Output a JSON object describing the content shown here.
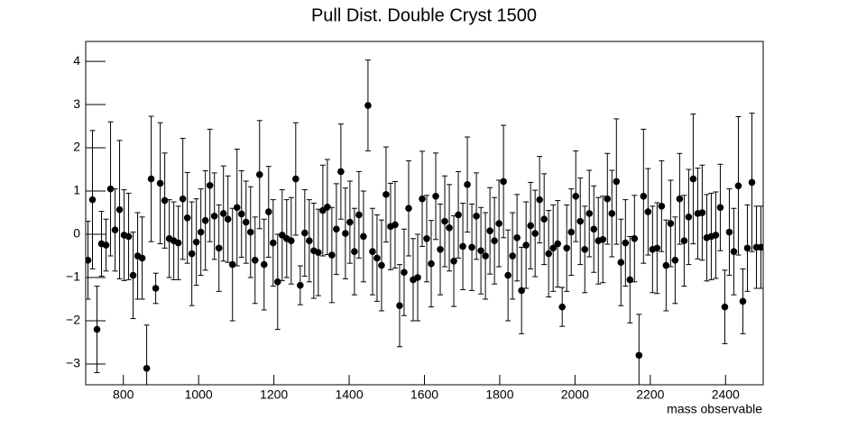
{
  "chart_data": {
    "type": "errorbar",
    "title": "Pull Dist. Double Cryst 1500",
    "x_label": "mass observable",
    "x": [
      706,
      718,
      730,
      742,
      754,
      766,
      778,
      790,
      802,
      814,
      826,
      838,
      850,
      862,
      874,
      886,
      898,
      910,
      922,
      934,
      946,
      958,
      970,
      982,
      994,
      1006,
      1018,
      1030,
      1042,
      1054,
      1066,
      1078,
      1090,
      1102,
      1114,
      1126,
      1138,
      1150,
      1162,
      1174,
      1186,
      1198,
      1210,
      1222,
      1234,
      1246,
      1258,
      1270,
      1282,
      1294,
      1306,
      1318,
      1330,
      1342,
      1354,
      1366,
      1378,
      1390,
      1402,
      1414,
      1426,
      1438,
      1450,
      1462,
      1474,
      1486,
      1498,
      1510,
      1522,
      1534,
      1546,
      1558,
      1570,
      1582,
      1594,
      1606,
      1618,
      1630,
      1642,
      1654,
      1666,
      1678,
      1690,
      1702,
      1714,
      1726,
      1738,
      1750,
      1762,
      1774,
      1786,
      1798,
      1810,
      1822,
      1834,
      1846,
      1858,
      1870,
      1882,
      1894,
      1906,
      1918,
      1930,
      1942,
      1954,
      1966,
      1978,
      1990,
      2002,
      2014,
      2026,
      2038,
      2050,
      2062,
      2074,
      2086,
      2098,
      2110,
      2122,
      2134,
      2146,
      2158,
      2170,
      2182,
      2194,
      2206,
      2218,
      2230,
      2242,
      2254,
      2266,
      2278,
      2290,
      2302,
      2314,
      2326,
      2338,
      2350,
      2362,
      2374,
      2386,
      2398,
      2410,
      2422,
      2434,
      2446,
      2458,
      2470,
      2482,
      2494
    ],
    "values": [
      -0.6,
      0.8,
      -2.2,
      -0.22,
      -0.25,
      1.05,
      0.1,
      0.57,
      -0.02,
      -0.05,
      -0.95,
      -0.5,
      -0.55,
      -3.1,
      1.28,
      -1.25,
      1.18,
      0.78,
      -0.1,
      -0.15,
      -0.2,
      0.82,
      0.38,
      -0.45,
      -0.18,
      0.05,
      0.32,
      1.13,
      0.42,
      -0.32,
      0.48,
      0.35,
      -0.7,
      0.62,
      0.47,
      0.28,
      0.05,
      -0.6,
      1.38,
      -0.7,
      0.52,
      -0.2,
      -1.1,
      -0.02,
      -0.1,
      -0.15,
      1.28,
      -1.18,
      0.03,
      -0.15,
      -0.38,
      -0.42,
      0.55,
      0.63,
      -0.48,
      0.12,
      1.45,
      0.02,
      0.28,
      -0.4,
      0.45,
      -0.05,
      2.98,
      -0.4,
      -0.55,
      -0.72,
      0.92,
      0.18,
      0.22,
      -1.65,
      -0.88,
      0.6,
      -1.05,
      -1.0,
      0.82,
      -0.1,
      -0.68,
      0.88,
      -0.35,
      0.3,
      0.15,
      -0.62,
      0.45,
      -0.28,
      1.15,
      -0.3,
      0.42,
      -0.38,
      -0.5,
      0.08,
      -0.15,
      0.25,
      1.22,
      -0.95,
      -0.5,
      -0.08,
      -1.3,
      -0.25,
      0.2,
      0.02,
      0.8,
      0.35,
      -0.45,
      -0.32,
      -0.22,
      -1.68,
      -0.32,
      0.05,
      0.88,
      0.3,
      -0.35,
      0.48,
      0.12,
      -0.15,
      -0.12,
      0.82,
      0.48,
      1.22,
      -0.65,
      -0.2,
      -1.05,
      -0.1,
      -2.8,
      0.88,
      0.52,
      -0.35,
      -0.32,
      0.65,
      -0.72,
      0.25,
      -0.6,
      0.82,
      -0.15,
      0.4,
      1.28,
      0.48,
      0.5,
      -0.08,
      -0.05,
      -0.02,
      0.62,
      -1.68,
      0.05,
      -0.4,
      1.12,
      -1.55,
      -0.32,
      1.2,
      -0.3,
      -0.3
    ],
    "errors": [
      0.9,
      1.6,
      1.0,
      0.75,
      0.6,
      1.55,
      0.95,
      1.6,
      1.05,
      1.0,
      1.0,
      1.0,
      0.95,
      1.0,
      1.45,
      0.35,
      1.4,
      1.1,
      0.9,
      0.9,
      0.85,
      1.4,
      1.05,
      1.2,
      1.0,
      1.0,
      1.15,
      1.3,
      1.0,
      1.0,
      1.1,
      1.0,
      1.3,
      1.35,
      1.0,
      0.95,
      1.05,
      1.0,
      1.25,
      1.05,
      1.05,
      1.0,
      1.1,
      1.05,
      0.9,
      1.0,
      1.3,
      0.45,
      1.0,
      0.95,
      1.1,
      1.0,
      1.05,
      1.1,
      1.1,
      1.05,
      1.1,
      1.05,
      0.95,
      1.0,
      1.0,
      1.05,
      1.05,
      1.0,
      1.0,
      1.05,
      1.1,
      1.0,
      1.0,
      0.95,
      1.0,
      1.1,
      0.95,
      1.0,
      1.1,
      1.0,
      1.0,
      1.0,
      1.05,
      1.05,
      1.0,
      1.05,
      1.0,
      1.0,
      1.1,
      1.0,
      1.0,
      1.0,
      1.0,
      1.0,
      1.0,
      1.0,
      1.3,
      1.05,
      1.0,
      1.0,
      1.0,
      1.0,
      1.0,
      1.0,
      1.0,
      1.05,
      1.0,
      1.0,
      1.0,
      0.45,
      1.0,
      1.0,
      1.05,
      1.0,
      1.0,
      1.0,
      1.0,
      1.0,
      1.0,
      1.05,
      1.0,
      1.45,
      1.0,
      1.0,
      1.0,
      1.0,
      0.95,
      1.55,
      1.0,
      1.0,
      1.05,
      1.05,
      1.05,
      1.0,
      1.0,
      1.05,
      1.05,
      1.1,
      1.5,
      1.05,
      1.1,
      1.0,
      1.0,
      1.0,
      1.0,
      0.85,
      1.0,
      1.0,
      1.6,
      0.75,
      1.0,
      1.6,
      0.95,
      0.95
    ],
    "color": "#000000",
    "xlim": [
      700,
      2500
    ],
    "xticks": [
      800,
      1000,
      1200,
      1400,
      1600,
      1800,
      2000,
      2200,
      2400
    ],
    "ylim": [
      -3.48,
      4.46
    ],
    "yticks": [
      {
        "value": -3,
        "label": "−3"
      },
      {
        "value": -2,
        "label": "−2"
      },
      {
        "value": -1,
        "label": "−1"
      },
      0,
      1,
      2,
      3,
      4
    ]
  }
}
